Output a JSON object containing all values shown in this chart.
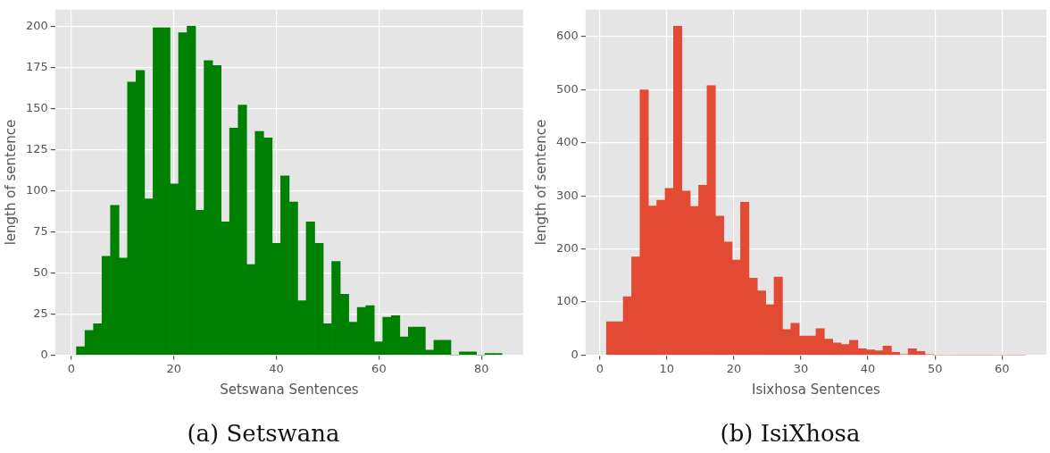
{
  "chart_data": [
    {
      "type": "histogram",
      "xlabel": "Setswana Sentences",
      "ylabel": "length of sentence",
      "color": "#008000",
      "bins": [
        1,
        2.66,
        4.32,
        5.98,
        7.64,
        9.3,
        10.96,
        12.62,
        14.28,
        15.94,
        17.6,
        19.26,
        20.92,
        22.58,
        24.24,
        25.9,
        27.56,
        29.22,
        30.88,
        32.54,
        34.2,
        35.86,
        37.52,
        39.18,
        40.84,
        42.5,
        44.16,
        45.82,
        47.48,
        49.14,
        50.8,
        52.46,
        54.12,
        55.78,
        57.44,
        59.1,
        60.76,
        62.42,
        64.08,
        65.74,
        67.4,
        69.06,
        70.72,
        72.38,
        74.04,
        75.7,
        77.36,
        79.02,
        80.68,
        82.34,
        84
      ],
      "values": [
        5,
        15,
        19,
        60,
        91,
        59,
        166,
        173,
        95,
        199,
        199,
        104,
        196,
        200,
        88,
        179,
        176,
        81,
        138,
        152,
        55,
        136,
        132,
        68,
        109,
        93,
        33,
        81,
        68,
        19,
        57,
        37,
        20,
        29,
        30,
        8,
        23,
        24,
        11,
        17,
        17,
        3,
        9,
        9,
        0,
        2,
        2,
        0,
        1,
        1
      ],
      "xlim": [
        -3.15,
        88.15
      ],
      "xticks": [
        0,
        20,
        40,
        60,
        80
      ],
      "ylim": [
        0,
        210
      ],
      "yticks": [
        0,
        25,
        50,
        75,
        100,
        125,
        150,
        175,
        200
      ],
      "grid": true,
      "annotations": [
        "(a) Setswana"
      ]
    },
    {
      "type": "histogram",
      "xlabel": "Isixhosa Sentences",
      "ylabel": "length of sentence",
      "color": "#e24a33",
      "bins": [
        1,
        2.25,
        3.5,
        4.75,
        6,
        7.25,
        8.5,
        9.75,
        11,
        12.25,
        13.5,
        14.75,
        16,
        17.25,
        18.5,
        19.75,
        21,
        22.25,
        23.5,
        24.75,
        26,
        27.25,
        28.5,
        29.75,
        31,
        32.25,
        33.5,
        34.75,
        36,
        37.25,
        38.5,
        39.75,
        41,
        42.25,
        43.5,
        44.75,
        46,
        47.25,
        48.5,
        49.75,
        51,
        52.25,
        53.5,
        54.75,
        56,
        57.25,
        58.5,
        59.75,
        61,
        62.25,
        63.5
      ],
      "values": [
        63,
        63,
        110,
        185,
        500,
        281,
        292,
        314,
        620,
        309,
        280,
        320,
        508,
        262,
        213,
        179,
        288,
        145,
        121,
        95,
        147,
        48,
        60,
        36,
        36,
        50,
        30,
        23,
        20,
        28,
        12,
        10,
        8,
        17,
        5,
        1,
        12,
        7,
        1,
        0,
        0,
        0,
        0,
        0,
        0,
        0,
        0,
        0,
        0,
        0
      ],
      "xlim": [
        -2.125,
        66.625
      ],
      "xticks": [
        0,
        10,
        20,
        30,
        40,
        50,
        60
      ],
      "ylim": [
        0,
        651
      ],
      "yticks": [
        0,
        100,
        200,
        300,
        400,
        500,
        600
      ],
      "grid": true,
      "annotations": [
        "(b) IsiXhosa"
      ]
    }
  ]
}
